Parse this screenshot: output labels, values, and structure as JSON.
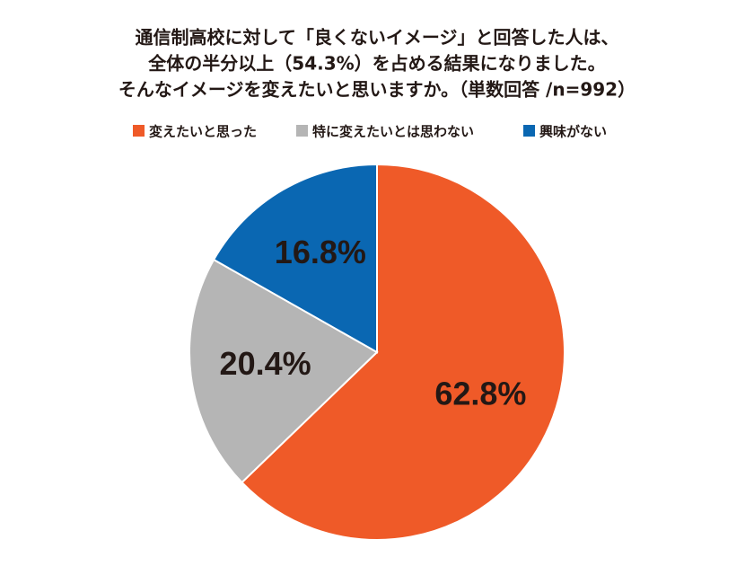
{
  "chart_data": {
    "type": "pie",
    "title": [
      "通信制高校に対して「良くないイメージ」と回答した人は、",
      "全体の半分以上（54.3%）を占める結果になりました。",
      "そんなイメージを変えたいと思いますか。（単数回答 /n=992）"
    ],
    "categories": [
      "変えたいと思った",
      "特に変えたいとは思わない",
      "興味がない"
    ],
    "values": [
      62.8,
      20.4,
      16.8
    ],
    "value_labels": [
      "62.8%",
      "20.4%",
      "16.8%"
    ],
    "colors": [
      "#ef5a28",
      "#b5b5b5",
      "#0a67b2"
    ],
    "legend": "top"
  }
}
